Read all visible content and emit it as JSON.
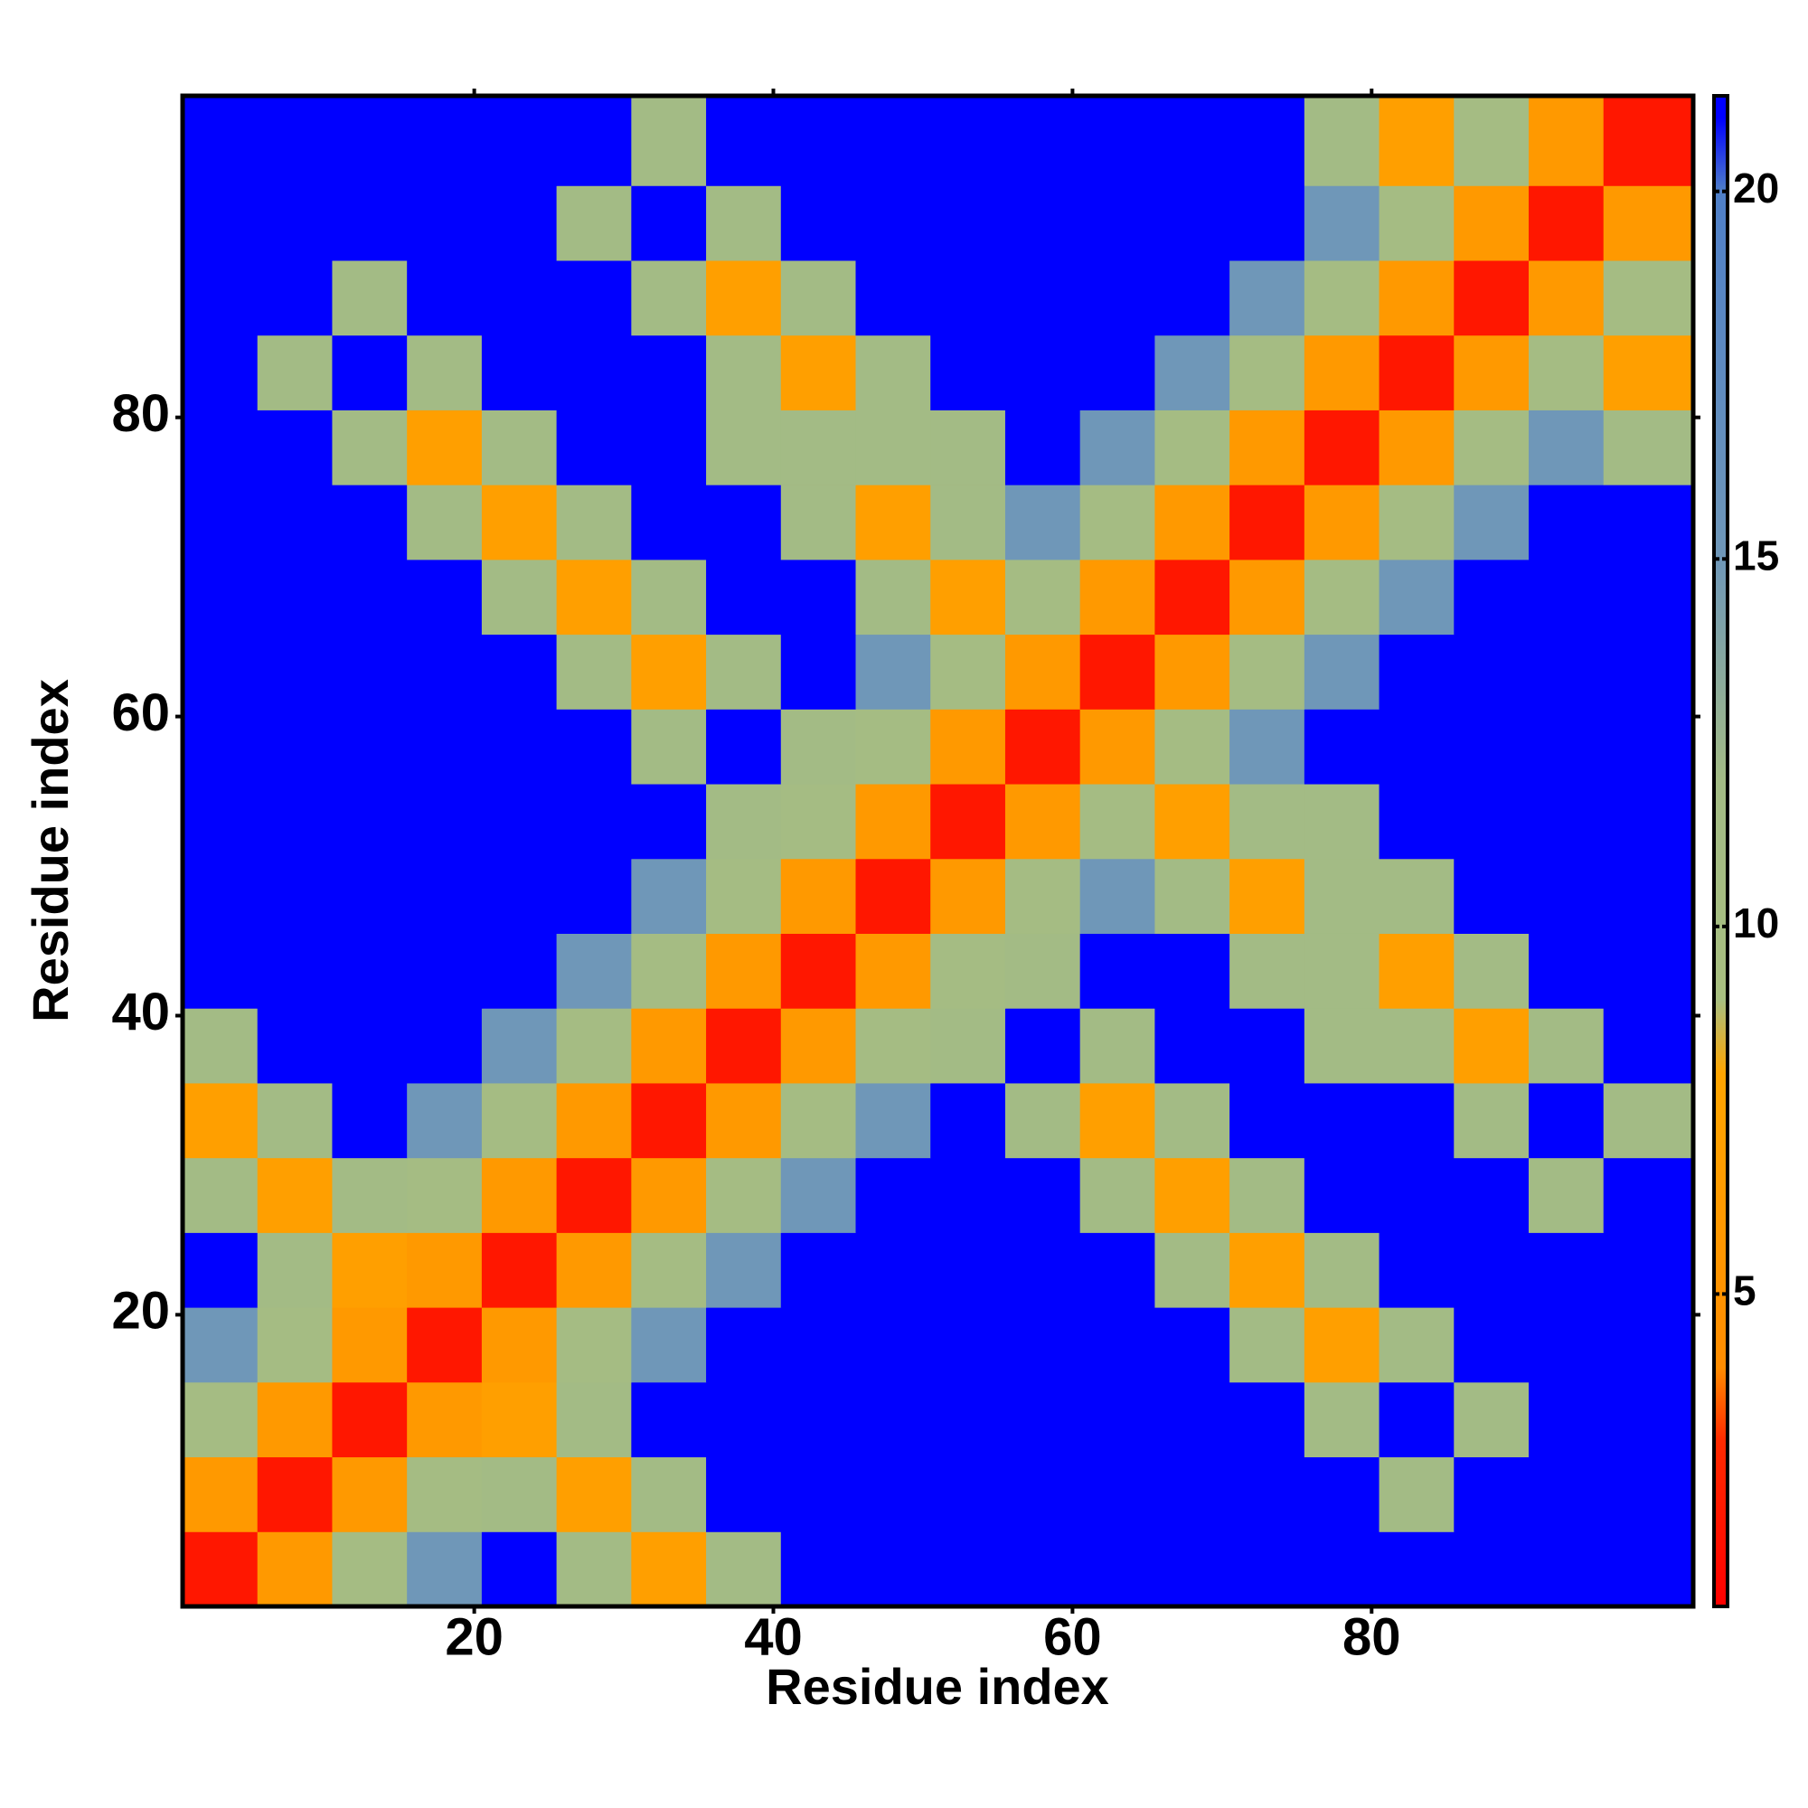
{
  "chart_data": {
    "type": "heatmap",
    "xlabel": "Residue index",
    "ylabel": "Residue index",
    "xlim": [
      0.5,
      101.5
    ],
    "ylim": [
      0.5,
      101.5
    ],
    "xticks": [
      20,
      40,
      60,
      80
    ],
    "yticks": [
      20,
      40,
      60,
      80
    ],
    "xbins": [
      0.5,
      5.5,
      10.5,
      15.5,
      20.5,
      25.5,
      30.5,
      35.5,
      40.5,
      45.5,
      50.5,
      55.5,
      60.5,
      65.5,
      70.5,
      75.5,
      80.5,
      85.5,
      90.5,
      95.5,
      101.5
    ],
    "ybins": [
      0.5,
      5.5,
      10.5,
      15.5,
      20.5,
      25.5,
      30.5,
      35.5,
      40.5,
      45.5,
      50.5,
      55.5,
      60.5,
      65.5,
      70.5,
      75.5,
      80.5,
      85.5,
      90.5,
      95.5,
      101.5
    ],
    "zlim": [
      0.75,
      21.3
    ],
    "zticks": [
      5,
      10,
      15,
      20
    ],
    "colorscale": [
      [
        0.75,
        "#ff0000"
      ],
      [
        3,
        "#ff2a00"
      ],
      [
        4,
        "#ff8c00"
      ],
      [
        8,
        "#ffa500"
      ],
      [
        9,
        "#a8bf80"
      ],
      [
        12,
        "#a3bb85"
      ],
      [
        15,
        "#6f97b8"
      ],
      [
        20,
        "#4f7fc8"
      ],
      [
        21,
        "#0000ff"
      ],
      [
        21.3,
        "#0000ff"
      ]
    ],
    "z": [
      [
        2,
        6,
        11,
        15,
        21,
        12,
        7,
        12,
        21,
        21,
        21,
        21,
        21,
        21,
        21,
        21,
        21,
        21,
        21,
        21
      ],
      [
        6,
        2,
        6,
        11,
        12,
        7,
        12,
        21,
        21,
        21,
        21,
        21,
        21,
        21,
        21,
        21,
        12,
        21,
        21,
        21
      ],
      [
        11,
        6,
        2,
        6,
        7,
        12,
        21,
        21,
        21,
        21,
        21,
        21,
        21,
        21,
        21,
        12,
        21,
        12,
        21,
        21
      ],
      [
        15,
        11,
        6,
        2,
        6,
        11,
        15,
        21,
        21,
        21,
        21,
        21,
        21,
        21,
        12,
        7,
        12,
        21,
        21,
        21
      ],
      [
        21,
        12,
        7,
        6,
        2,
        6,
        11,
        15,
        21,
        21,
        21,
        21,
        21,
        12,
        7,
        12,
        21,
        21,
        21,
        21
      ],
      [
        12,
        7,
        12,
        11,
        6,
        2,
        6,
        11,
        15,
        21,
        21,
        21,
        12,
        7,
        12,
        21,
        21,
        21,
        12,
        21
      ],
      [
        7,
        12,
        21,
        15,
        11,
        6,
        2,
        6,
        11,
        15,
        21,
        12,
        7,
        12,
        21,
        21,
        21,
        12,
        21,
        12
      ],
      [
        12,
        21,
        21,
        21,
        15,
        11,
        6,
        2,
        6,
        11,
        12,
        21,
        12,
        21,
        21,
        12,
        12,
        7,
        12,
        21
      ],
      [
        21,
        21,
        21,
        21,
        21,
        15,
        11,
        6,
        2,
        6,
        11,
        12,
        21,
        21,
        12,
        12,
        7,
        12,
        21,
        21
      ],
      [
        21,
        21,
        21,
        21,
        21,
        21,
        15,
        11,
        6,
        2,
        6,
        11,
        15,
        12,
        7,
        12,
        12,
        21,
        21,
        21
      ],
      [
        21,
        21,
        21,
        21,
        21,
        21,
        21,
        12,
        11,
        6,
        2,
        6,
        11,
        7,
        12,
        12,
        21,
        21,
        21,
        21
      ],
      [
        21,
        21,
        21,
        21,
        21,
        21,
        12,
        21,
        12,
        11,
        6,
        2,
        6,
        11,
        15,
        21,
        21,
        21,
        21,
        21
      ],
      [
        21,
        21,
        21,
        21,
        21,
        12,
        7,
        12,
        21,
        15,
        11,
        6,
        2,
        6,
        11,
        15,
        21,
        21,
        21,
        21
      ],
      [
        21,
        21,
        21,
        21,
        12,
        7,
        12,
        21,
        21,
        12,
        7,
        11,
        6,
        2,
        6,
        11,
        15,
        21,
        21,
        21
      ],
      [
        21,
        21,
        21,
        12,
        7,
        12,
        21,
        21,
        12,
        7,
        12,
        15,
        11,
        6,
        2,
        6,
        11,
        15,
        21,
        21
      ],
      [
        21,
        21,
        12,
        7,
        12,
        21,
        21,
        12,
        12,
        12,
        12,
        21,
        15,
        11,
        6,
        2,
        6,
        11,
        15,
        12
      ],
      [
        21,
        12,
        21,
        12,
        21,
        21,
        21,
        12,
        7,
        12,
        21,
        21,
        21,
        15,
        11,
        6,
        2,
        6,
        11,
        7
      ],
      [
        21,
        21,
        12,
        21,
        21,
        21,
        12,
        7,
        12,
        21,
        21,
        21,
        21,
        21,
        15,
        11,
        6,
        2,
        6,
        11
      ],
      [
        21,
        21,
        21,
        21,
        21,
        12,
        21,
        12,
        21,
        21,
        21,
        21,
        21,
        21,
        21,
        15,
        11,
        6,
        2,
        6
      ],
      [
        21,
        21,
        21,
        21,
        21,
        21,
        12,
        21,
        21,
        21,
        21,
        21,
        21,
        21,
        21,
        12,
        7,
        11,
        6,
        2
      ]
    ]
  }
}
